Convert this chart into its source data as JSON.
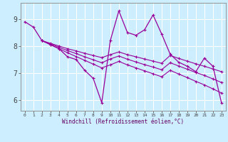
{
  "background_color": "#cceeff",
  "grid_color": "#aadddd",
  "line_color": "#990099",
  "xlabel": "Windchill (Refroidissement éolien,°C)",
  "ylabel_ticks": [
    6,
    7,
    8,
    9
  ],
  "xlim": [
    -0.5,
    23.5
  ],
  "ylim": [
    5.6,
    9.6
  ],
  "x_ticks": [
    0,
    1,
    2,
    3,
    4,
    5,
    6,
    7,
    8,
    9,
    10,
    11,
    12,
    13,
    14,
    15,
    16,
    17,
    18,
    19,
    20,
    21,
    22,
    23
  ],
  "series": [
    {
      "x": [
        0,
        1,
        2,
        3,
        4,
        5,
        6,
        7,
        8,
        9,
        10,
        11,
        12,
        13,
        14,
        15,
        16,
        17,
        18,
        19,
        20,
        21,
        22,
        23
      ],
      "y": [
        8.9,
        8.7,
        8.2,
        8.05,
        7.9,
        7.6,
        7.5,
        7.1,
        6.8,
        5.9,
        8.2,
        9.3,
        8.5,
        8.4,
        8.6,
        9.15,
        8.45,
        7.7,
        7.4,
        7.25,
        7.05,
        7.55,
        7.25,
        5.9
      ]
    },
    {
      "x": [
        2,
        3,
        4,
        5,
        6,
        7,
        8,
        9,
        10,
        11,
        12,
        13,
        14,
        15,
        16,
        17,
        18,
        19,
        20,
        21,
        22,
        23
      ],
      "y": [
        8.2,
        8.1,
        8.0,
        7.9,
        7.82,
        7.73,
        7.65,
        7.57,
        7.68,
        7.78,
        7.68,
        7.6,
        7.52,
        7.44,
        7.36,
        7.65,
        7.54,
        7.44,
        7.34,
        7.25,
        7.15,
        7.05
      ]
    },
    {
      "x": [
        2,
        3,
        4,
        5,
        6,
        7,
        8,
        9,
        10,
        11,
        12,
        13,
        14,
        15,
        16,
        17,
        18,
        19,
        20,
        21,
        22,
        23
      ],
      "y": [
        8.2,
        8.08,
        7.95,
        7.83,
        7.72,
        7.6,
        7.49,
        7.38,
        7.52,
        7.63,
        7.51,
        7.41,
        7.31,
        7.22,
        7.12,
        7.38,
        7.26,
        7.14,
        7.02,
        6.91,
        6.78,
        6.65
      ]
    },
    {
      "x": [
        2,
        3,
        4,
        5,
        6,
        7,
        8,
        9,
        10,
        11,
        12,
        13,
        14,
        15,
        16,
        17,
        18,
        19,
        20,
        21,
        22,
        23
      ],
      "y": [
        8.2,
        8.05,
        7.9,
        7.75,
        7.61,
        7.47,
        7.33,
        7.19,
        7.3,
        7.43,
        7.3,
        7.19,
        7.08,
        6.97,
        6.86,
        7.1,
        6.96,
        6.83,
        6.69,
        6.56,
        6.41,
        6.26
      ]
    }
  ]
}
